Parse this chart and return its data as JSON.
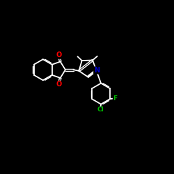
{
  "background_color": "#000000",
  "bond_color": "#ffffff",
  "atom_colors": {
    "O": "#ff0000",
    "N": "#0000cd",
    "Cl": "#00bb00",
    "F": "#00bb00",
    "C": "#ffffff"
  },
  "figsize": [
    2.5,
    2.5
  ],
  "dpi": 100,
  "lw": 1.3,
  "lw2": 1.0
}
